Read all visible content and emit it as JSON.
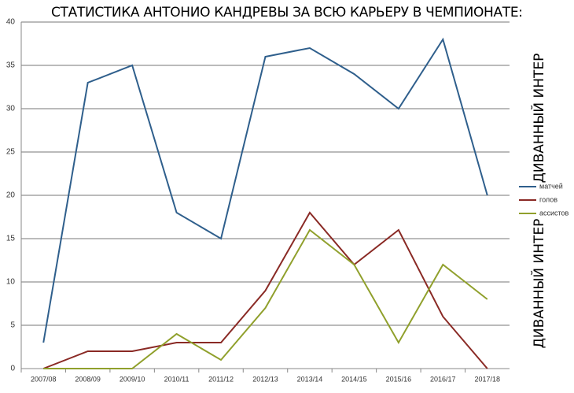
{
  "chart_data": {
    "type": "line",
    "title": "СТАТИСТИКА АНТОНИО КАНДРЕВЫ ЗА ВСЮ КАРЬЕРУ В ЧЕМПИОНАТЕ:",
    "watermarks": [
      "ДИВАННЫЙ ИНТЕР",
      "ДИВАННЫЙ ИНТЕР"
    ],
    "categories": [
      "2007/08",
      "2008/09",
      "2009/10",
      "2010/11",
      "2011/12",
      "2012/13",
      "2013/14",
      "2014/15",
      "2015/16",
      "2016/17",
      "2017/18"
    ],
    "series": [
      {
        "name": "матчей",
        "color": "#2f5f8c",
        "values": [
          3,
          33,
          35,
          18,
          15,
          36,
          37,
          34,
          30,
          38,
          20
        ]
      },
      {
        "name": "голов",
        "color": "#8a2a25",
        "values": [
          0,
          2,
          2,
          3,
          3,
          9,
          18,
          12,
          16,
          6,
          0
        ]
      },
      {
        "name": "ассистов",
        "color": "#90a02c",
        "values": [
          0,
          0,
          0,
          4,
          1,
          7,
          16,
          12,
          3,
          12,
          8
        ]
      }
    ],
    "ylim": [
      0,
      40
    ],
    "yticks": [
      0,
      5,
      10,
      15,
      20,
      25,
      30,
      35,
      40
    ],
    "grid": true,
    "legend": "right"
  }
}
